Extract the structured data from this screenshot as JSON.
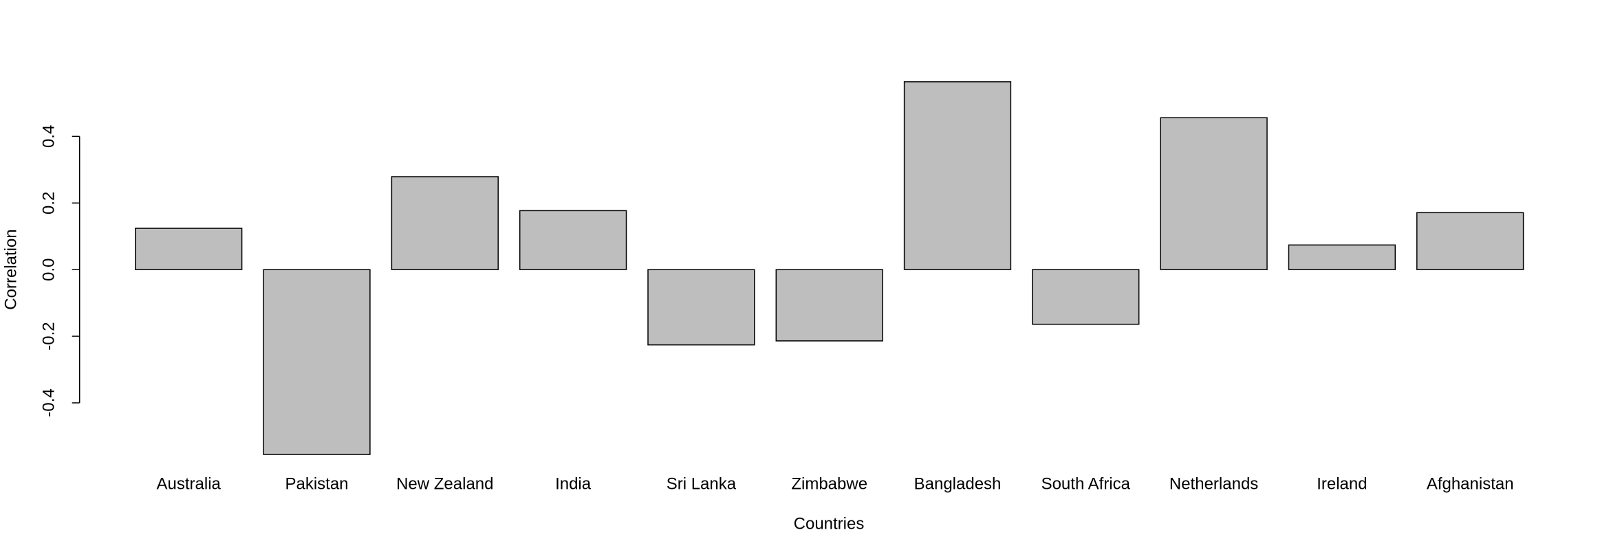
{
  "chart_data": {
    "type": "bar",
    "x_label": "Countries",
    "y_label": "Correlation",
    "categories": [
      "Australia",
      "Pakistan",
      "New Zealand",
      "India",
      "Sri Lanka",
      "Zimbabwe",
      "Bangladesh",
      "South Africa",
      "Netherlands",
      "Ireland",
      "Afghanistan"
    ],
    "values": [
      0.124,
      -0.555,
      0.279,
      0.177,
      -0.226,
      -0.214,
      0.564,
      -0.164,
      0.456,
      0.074,
      0.171
    ],
    "color": "#bebebe",
    "ylim": [
      -0.56,
      0.57
    ],
    "yticks": [
      -0.4,
      -0.2,
      {
        "value": 0,
        "label": "0.0"
      },
      0.2,
      0.4
    ],
    "grid": false
  }
}
